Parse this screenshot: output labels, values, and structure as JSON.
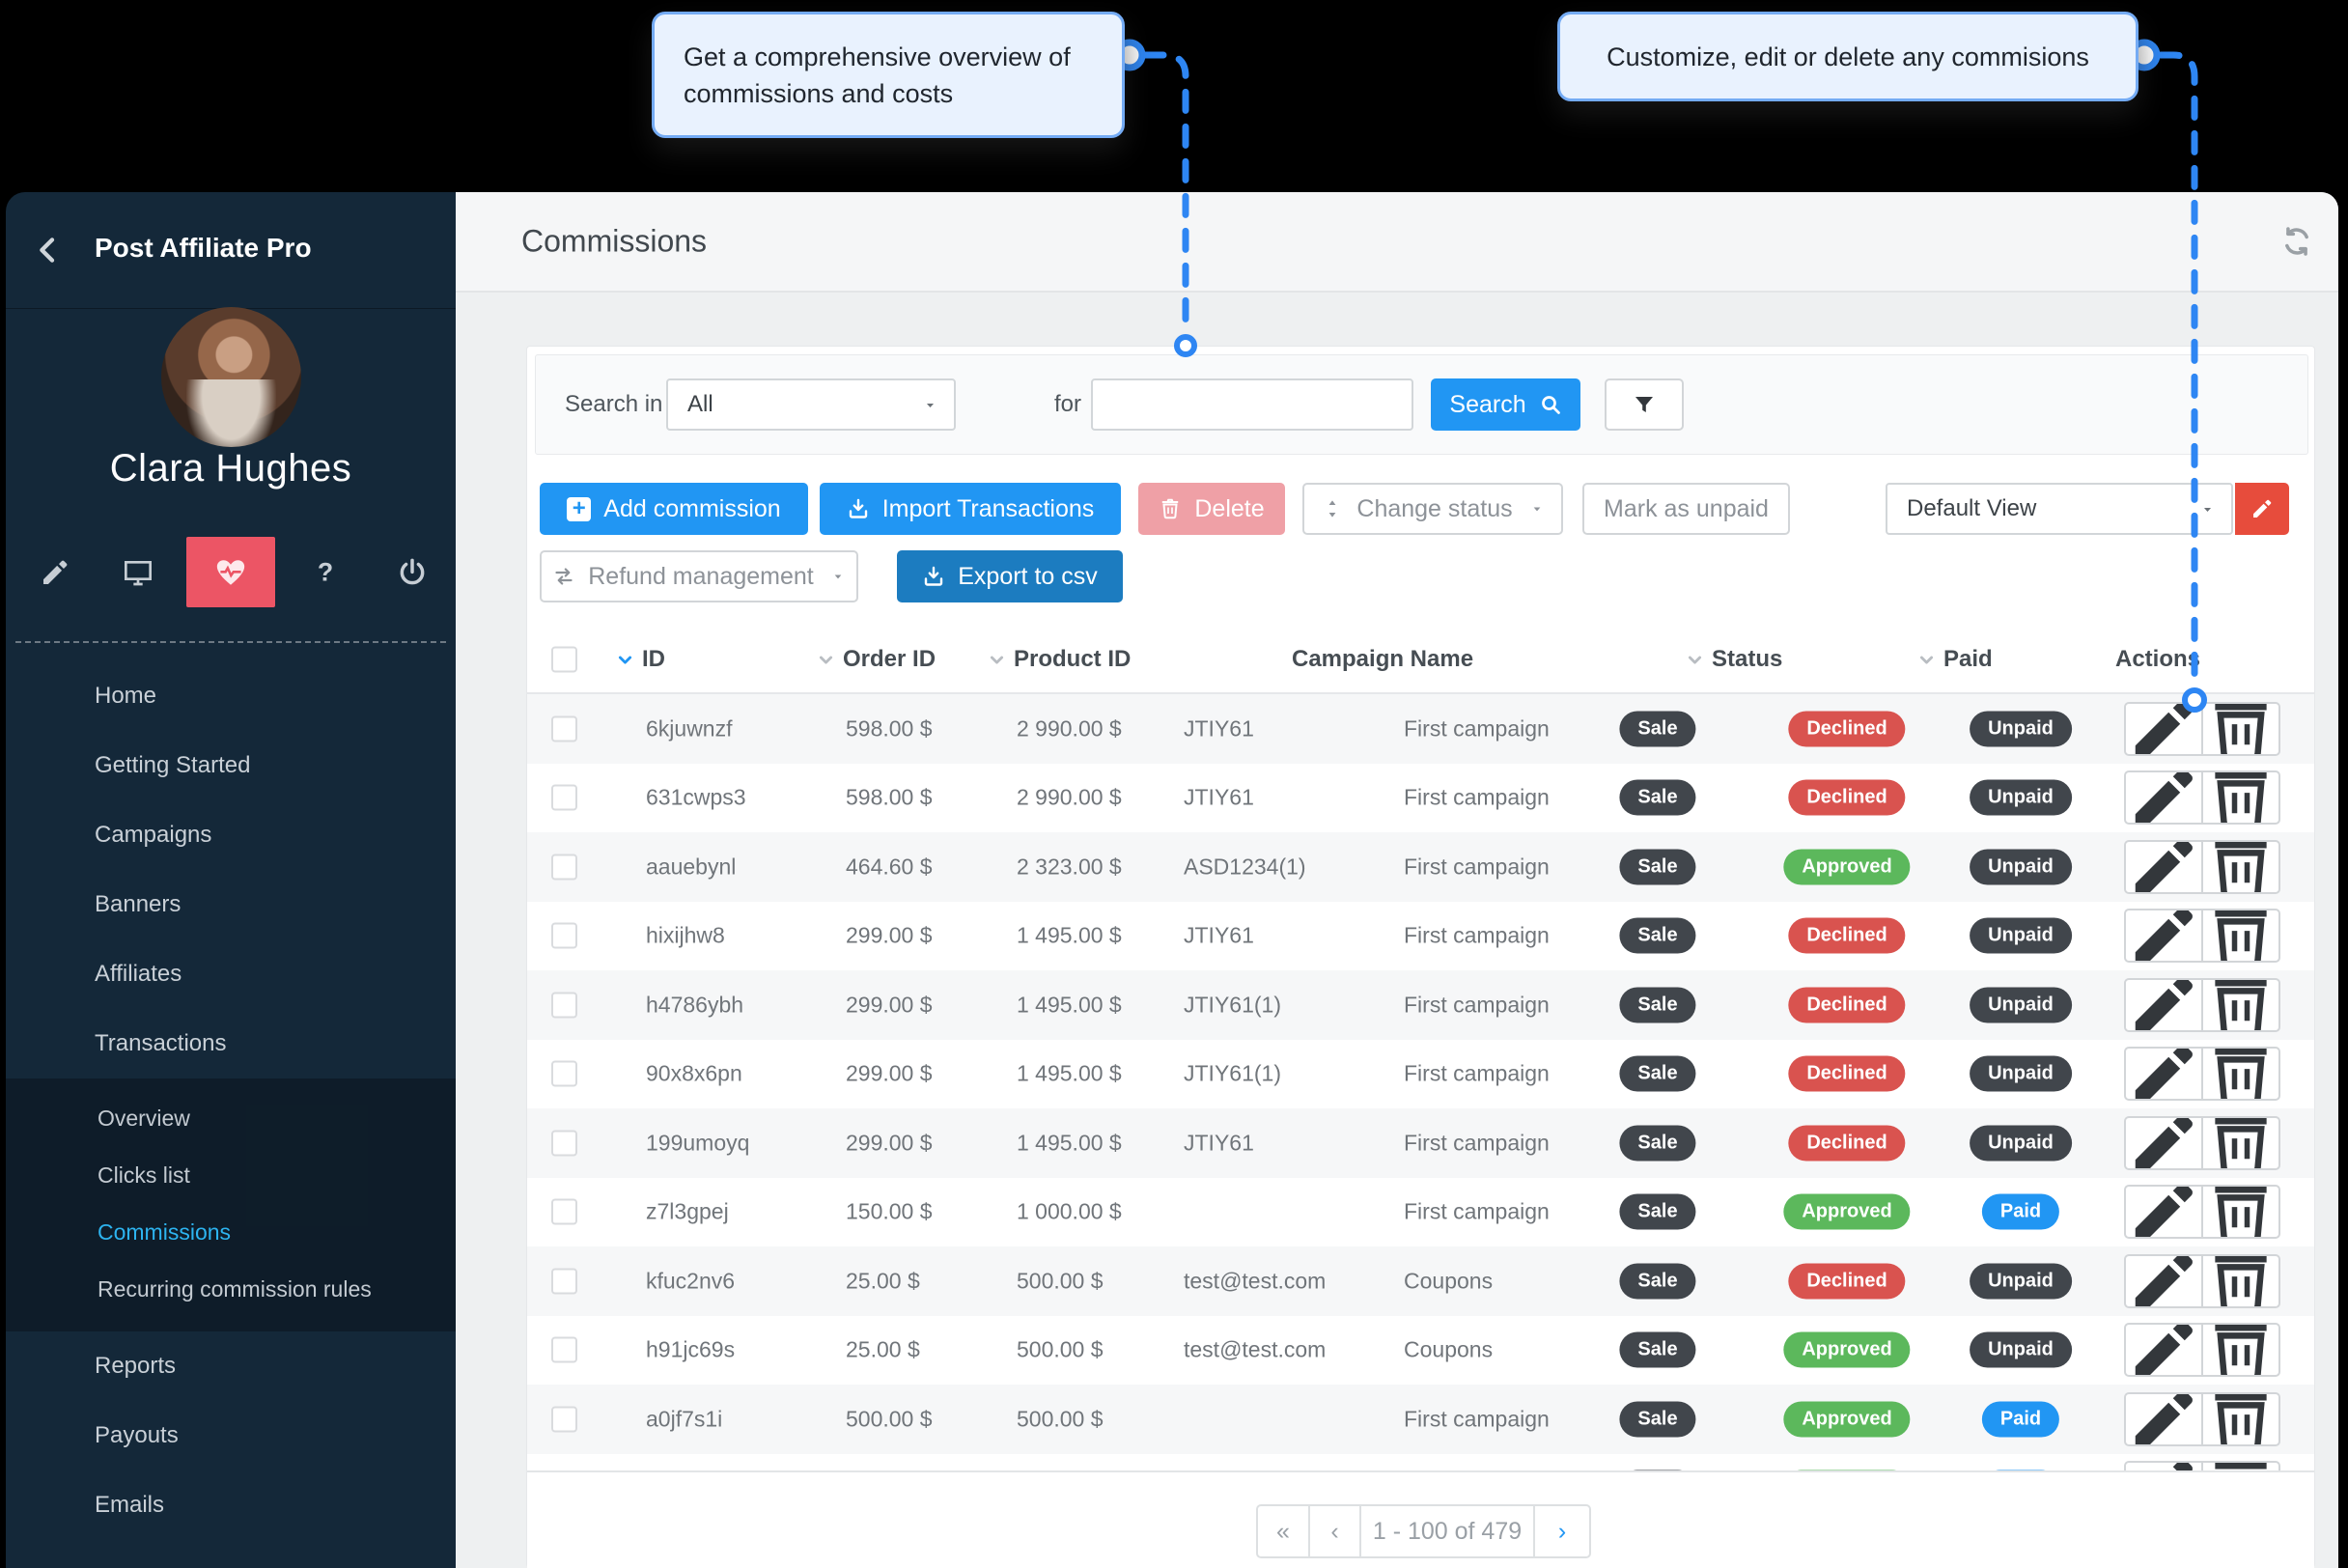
{
  "tooltips": {
    "left": "Get a comprehensive overview of commissions and costs",
    "right": "Customize, edit or delete any commisions"
  },
  "sidebar": {
    "title": "Post Affiliate Pro",
    "user_name": "Clara Hughes",
    "nav": [
      {
        "key": "home",
        "icon": "home",
        "label": "Home"
      },
      {
        "key": "getting-started",
        "icon": "stopwatch",
        "label": "Getting Started"
      },
      {
        "key": "campaigns",
        "icon": "megaphone",
        "label": "Campaigns",
        "chevron": "down"
      },
      {
        "key": "banners",
        "icon": "hand",
        "label": "Banners",
        "chevron": "down"
      },
      {
        "key": "affiliates",
        "icon": "users",
        "label": "Affiliates",
        "chevron": "down"
      },
      {
        "key": "transactions",
        "icon": "basket",
        "label": "Transactions",
        "chevron": "up",
        "submenu": [
          {
            "key": "overview",
            "label": "Overview"
          },
          {
            "key": "clicks-list",
            "label": "Clicks list"
          },
          {
            "key": "commissions",
            "label": "Commissions",
            "active": true
          },
          {
            "key": "recurring-commission-rules",
            "label": "Recurring commission rules"
          }
        ]
      },
      {
        "key": "reports",
        "icon": "pie",
        "label": "Reports",
        "chevron": "down"
      },
      {
        "key": "payouts",
        "icon": "moneybag",
        "label": "Payouts",
        "chevron": "down"
      },
      {
        "key": "emails",
        "icon": "envelope",
        "label": "Emails",
        "chevron": "down"
      }
    ]
  },
  "header": {
    "title": "Commissions"
  },
  "search": {
    "label": "Search in",
    "scope": "All",
    "for_label": "for",
    "button": "Search"
  },
  "toolbar": {
    "add": "Add commission",
    "import": "Import Transactions",
    "delete": "Delete",
    "change_status": "Change status",
    "mark_unpaid": "Mark as unpaid",
    "view": "Default View",
    "refund": "Refund management",
    "export": "Export to csv"
  },
  "table": {
    "columns": [
      {
        "key": "id",
        "label": "ID",
        "sort": "active"
      },
      {
        "key": "order",
        "label": "Order ID",
        "sort": "inactive"
      },
      {
        "key": "product",
        "label": "Product ID",
        "sort": "inactive"
      },
      {
        "key": "campaign",
        "label": "Campaign Name"
      },
      {
        "key": "status",
        "label": "Status",
        "sort": "inactive"
      },
      {
        "key": "paid",
        "label": "Paid",
        "sort": "inactive"
      },
      {
        "key": "actions",
        "label": "Actions"
      }
    ],
    "rows": [
      {
        "id": "6kjuwnzf",
        "order": "598.00 $",
        "product": "2 990.00 $",
        "product_code": "JTIY61",
        "campaign": "First campaign",
        "type": "Sale",
        "status": "Declined",
        "paid": "Unpaid"
      },
      {
        "id": "631cwps3",
        "order": "598.00 $",
        "product": "2 990.00 $",
        "product_code": "JTIY61",
        "campaign": "First campaign",
        "type": "Sale",
        "status": "Declined",
        "paid": "Unpaid"
      },
      {
        "id": "aauebynl",
        "order": "464.60 $",
        "product": "2 323.00 $",
        "product_code": "ASD1234(1)",
        "campaign": "First campaign",
        "type": "Sale",
        "status": "Approved",
        "paid": "Unpaid"
      },
      {
        "id": "hixijhw8",
        "order": "299.00 $",
        "product": "1 495.00 $",
        "product_code": "JTIY61",
        "campaign": "First campaign",
        "type": "Sale",
        "status": "Declined",
        "paid": "Unpaid"
      },
      {
        "id": "h4786ybh",
        "order": "299.00 $",
        "product": "1 495.00 $",
        "product_code": "JTIY61(1)",
        "campaign": "First campaign",
        "type": "Sale",
        "status": "Declined",
        "paid": "Unpaid"
      },
      {
        "id": "90x8x6pn",
        "order": "299.00 $",
        "product": "1 495.00 $",
        "product_code": "JTIY61(1)",
        "campaign": "First campaign",
        "type": "Sale",
        "status": "Declined",
        "paid": "Unpaid"
      },
      {
        "id": "199umoyq",
        "order": "299.00 $",
        "product": "1 495.00 $",
        "product_code": "JTIY61",
        "campaign": "First campaign",
        "type": "Sale",
        "status": "Declined",
        "paid": "Unpaid"
      },
      {
        "id": "z7l3gpej",
        "order": "150.00 $",
        "product": "1 000.00 $",
        "product_code": "",
        "campaign": "First campaign",
        "type": "Sale",
        "status": "Approved",
        "paid": "Paid"
      },
      {
        "id": "kfuc2nv6",
        "order": "25.00 $",
        "product": "500.00 $",
        "product_code": "test@test.com",
        "campaign": "Coupons",
        "type": "Sale",
        "status": "Declined",
        "paid": "Unpaid"
      },
      {
        "id": "h91jc69s",
        "order": "25.00 $",
        "product": "500.00 $",
        "product_code": "test@test.com",
        "campaign": "Coupons",
        "type": "Sale",
        "status": "Approved",
        "paid": "Unpaid"
      },
      {
        "id": "a0jf7s1i",
        "order": "500.00 $",
        "product": "500.00 $",
        "product_code": "",
        "campaign": "First campaign",
        "type": "Sale",
        "status": "Approved",
        "paid": "Paid"
      },
      {
        "id": "",
        "order": "",
        "product": "",
        "product_code": "",
        "campaign": "",
        "type": "Sale",
        "status": "Approved",
        "paid": "Paid",
        "partial": true
      }
    ]
  },
  "pagination": {
    "first": "«",
    "prev": "‹",
    "range": "1 - 100 of 479",
    "next": "›"
  },
  "colors": {
    "primary": "#2196f3",
    "accent_red": "#ec5565",
    "danger": "#e74c3c",
    "approved": "#5cb85c",
    "declined": "#d9534f",
    "dark_badge": "#41464c",
    "connector": "#2e86f3"
  }
}
